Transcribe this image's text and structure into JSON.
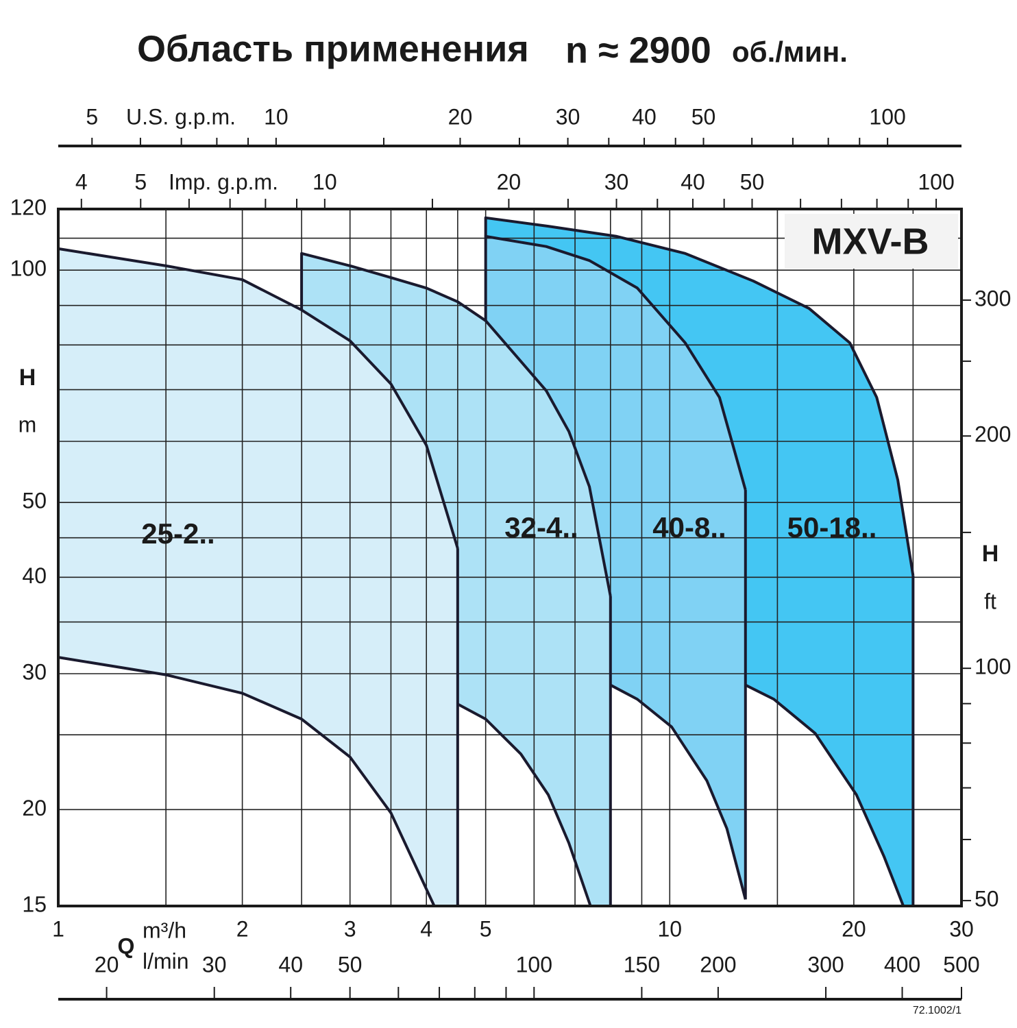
{
  "chart_data": {
    "type": "region",
    "title": "Область применения",
    "speed": "n ≈ 2900",
    "speed_unit": "об./мин.",
    "badge": "MXV-B",
    "footer": "72.1002/1",
    "x_label": "Q",
    "x_unit": "m³/h",
    "y_label": "H",
    "y_unit": "m",
    "y2_label": "H",
    "y2_unit": "ft",
    "xscale": "log",
    "yscale": "log",
    "xlim": [
      1,
      30
    ],
    "xticks": [
      1,
      2,
      3,
      4,
      5,
      10,
      20,
      30
    ],
    "xgrid": [
      1.5,
      2,
      2.5,
      3,
      3.5,
      4,
      4.5,
      5,
      6,
      7,
      8,
      9,
      10,
      15,
      20,
      25
    ],
    "ylim": [
      15,
      120
    ],
    "yticks": [
      15,
      20,
      30,
      40,
      50,
      100,
      120
    ],
    "ygrid": [
      20,
      25,
      30,
      35,
      40,
      45,
      50,
      60,
      70,
      80,
      90,
      100,
      110
    ],
    "y2lim": [
      49.2,
      393.7
    ],
    "y2ticks": [
      50,
      100,
      200,
      300
    ],
    "y2minor": [
      60,
      70,
      80,
      90,
      150,
      250
    ],
    "us_axis": {
      "label": "U.S. g.p.m.",
      "lim": [
        4.403,
        132.1
      ],
      "ticks": [
        5,
        10,
        20,
        30,
        40,
        50,
        100
      ],
      "minor": [
        6,
        7,
        8,
        9,
        15,
        25,
        35,
        45,
        60,
        70,
        80,
        90
      ]
    },
    "imp_axis": {
      "label": "Imp. g.p.m.",
      "lim": [
        3.666,
        110
      ],
      "ticks": [
        4,
        5,
        10,
        20,
        30,
        40,
        50,
        100
      ],
      "minor": [
        6,
        7,
        8,
        9,
        15,
        25,
        35,
        45,
        60,
        70,
        80,
        90
      ]
    },
    "lmin_axis": {
      "label": "l/min",
      "lim": [
        16.67,
        500
      ],
      "ticks": [
        20,
        30,
        40,
        50,
        100,
        150,
        200,
        300,
        400,
        500
      ],
      "minor": [
        60,
        70,
        80,
        90
      ]
    },
    "series": [
      {
        "name": "25-2..",
        "color": "#d6eef9",
        "upper_x": [
          1,
          1.5,
          2,
          2.5,
          3,
          3.5,
          4,
          4.5
        ],
        "upper_y": [
          106.6,
          101.3,
          97.2,
          88.8,
          81.0,
          71.2,
          59.3,
          43.6
        ],
        "lower_x": [
          1,
          1.5,
          2,
          2.5,
          3,
          3.5,
          4.12,
          4.5
        ],
        "lower_y": [
          31.5,
          29.9,
          28.3,
          26.2,
          23.4,
          19.8,
          15,
          15
        ]
      },
      {
        "name": "32-4..",
        "color": "#ade2f6",
        "upper_x": [
          2.5,
          2.5,
          3,
          3.5,
          4,
          4.5,
          5,
          6.28,
          6.84,
          7.39,
          8
        ],
        "upper_y": [
          88.8,
          105.1,
          101.3,
          97.8,
          94.8,
          91.0,
          86.0,
          69.8,
          61.8,
          52.4,
          37.8
        ],
        "lower_x": [
          4.5,
          5,
          5.71,
          6.33,
          6.84,
          7.42,
          8
        ],
        "lower_y": [
          27.4,
          26.2,
          23.6,
          20.9,
          18.1,
          15,
          15
        ]
      },
      {
        "name": "40-8..",
        "color": "#80d2f4",
        "upper_x": [
          5,
          5,
          6.28,
          7.39,
          8.85,
          10.6,
          12.06,
          13.3
        ],
        "upper_y": [
          86.0,
          110.6,
          107.3,
          102.9,
          94.8,
          80.5,
          68.4,
          51.9
        ],
        "lower_x": [
          8,
          8.85,
          10.07,
          11.5,
          12.4,
          13.3
        ],
        "lower_y": [
          29.0,
          27.8,
          25.6,
          21.8,
          18.9,
          15.3
        ]
      },
      {
        "name": "50-18..",
        "color": "#44c6f3",
        "upper_x": [
          5,
          5,
          6.33,
          8.19,
          10.6,
          13.7,
          16.9,
          19.7,
          21.8,
          23.6,
          25.0
        ],
        "upper_y": [
          110.6,
          116.9,
          114,
          110.6,
          105.1,
          96.8,
          89.2,
          80.5,
          68.4,
          53.5,
          40.2
        ],
        "lower_x": [
          13.3,
          14.8,
          17.3,
          20.2,
          22.4,
          24.1,
          25.0
        ],
        "lower_y": [
          29.0,
          27.8,
          25.1,
          20.9,
          17.4,
          15,
          15
        ]
      }
    ]
  }
}
